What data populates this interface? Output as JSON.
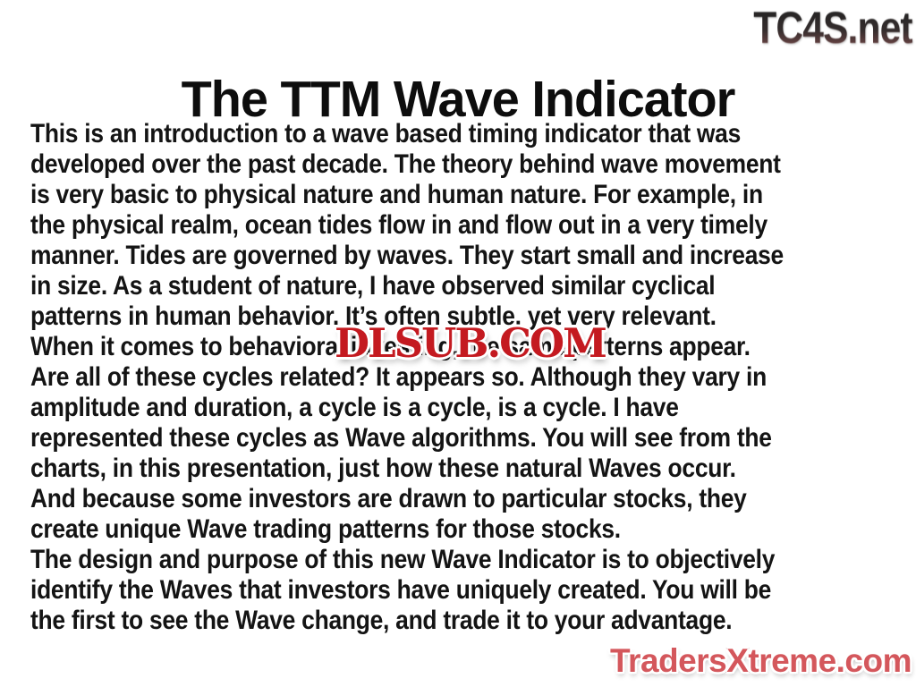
{
  "slide": {
    "title": "The TTM Wave Indicator",
    "body": {
      "lines": [
        "This is an introduction to a wave based timing indicator that was",
        "developed over the past decade. The theory behind wave movement",
        "is very basic to physical nature and human nature. For example, in",
        "the physical realm, ocean tides flow in and flow out in a very timely",
        "manner. Tides are governed by waves. They start small and increase",
        "in size. As a student of nature, I have observed similar cyclical",
        "patterns in human behavior. It’s often subtle, yet very relevant.",
        "When it comes to behavioral investing, the same patterns appear.",
        "Are all of these cycles related? It appears so. Although they vary in",
        "amplitude and duration, a cycle is a cycle, is a cycle. I have",
        "represented these cycles as Wave algorithms. You will see from the",
        "charts, in this presentation, just how these natural Waves occur.",
        "And because some investors are drawn to particular stocks, they",
        "create unique Wave trading patterns for those stocks.",
        "The design and purpose of this new Wave Indicator is to objectively",
        "identify the Waves that investors have uniquely created. You will be",
        "the first to see the Wave change, and trade it to your advantage."
      ]
    },
    "watermarks": {
      "top_right": "TC4S.net",
      "center": "DLSUB.COM",
      "bottom_right": "TradersXtreme.com"
    },
    "colors": {
      "background": "#ffffff",
      "body_text": "#141414",
      "title_text": "#0d0d0d",
      "dlsub_red": "#c41a20",
      "dlsub_outline": "#7a0f13",
      "traders_fill": "#d4575c",
      "traders_outline": "#701d21",
      "tc4s_gradient_top": "#232323",
      "tc4s_gradient_bottom": "#7c4b4b"
    }
  }
}
